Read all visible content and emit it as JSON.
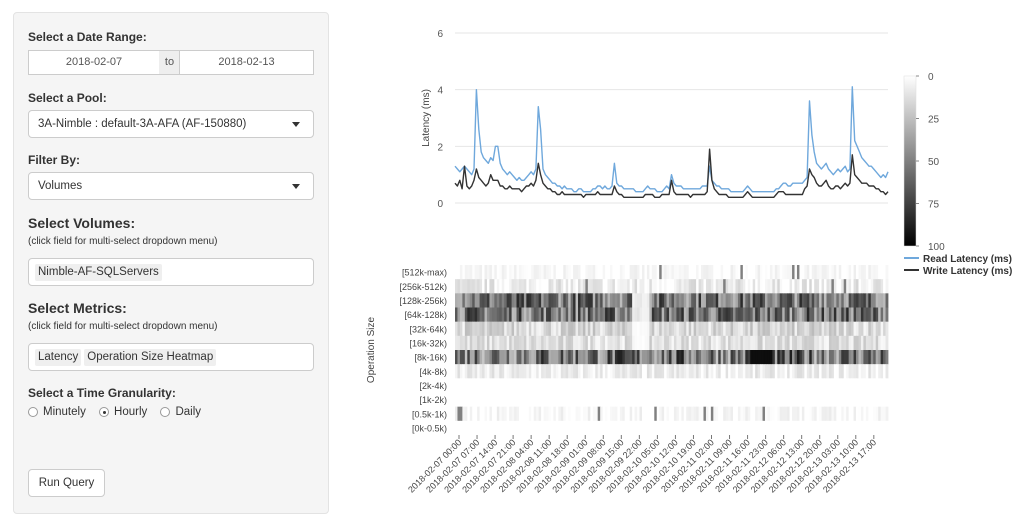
{
  "sidebar": {
    "date_range_label": "Select a Date Range:",
    "date_start": "2018-02-07",
    "date_sep": "to",
    "date_end": "2018-02-13",
    "pool_label": "Select a Pool:",
    "pool_value": "3A-Nimble : default-3A-AFA (AF-150880)",
    "filter_label": "Filter By:",
    "filter_value": "Volumes",
    "volumes_label": "Select Volumes:",
    "volumes_hint": "(click field for multi-select dropdown menu)",
    "volumes_tags": [
      "Nimble-AF-SQLServers"
    ],
    "metrics_label": "Select Metrics:",
    "metrics_hint": "(click field for multi-select dropdown menu)",
    "metrics_tags": [
      "Latency",
      "Operation Size Heatmap"
    ],
    "granularity_label": "Select a Time Granularity:",
    "granularity_options": [
      "Minutely",
      "Hourly",
      "Daily"
    ],
    "granularity_selected": "Hourly",
    "run_button": "Run Query"
  },
  "chart_data": [
    {
      "type": "line",
      "ylabel": "Latency (ms)",
      "ylim": [
        0,
        6
      ],
      "yticks": [
        "0",
        "2",
        "4",
        "6"
      ],
      "series": [
        {
          "name": "Read Latency (ms)",
          "color": "#6fa8dc",
          "values": [
            1.3,
            1.2,
            1.1,
            1.2,
            1.3,
            1.2,
            1.1,
            1.0,
            1.2,
            4.0,
            2.6,
            1.8,
            1.6,
            1.5,
            1.4,
            1.6,
            1.5,
            2.0,
            2.0,
            1.4,
            1.2,
            1.1,
            1.0,
            1.1,
            1.0,
            0.9,
            0.8,
            0.9,
            0.8,
            0.8,
            0.9,
            1.0,
            1.1,
            1.0,
            1.2,
            3.4,
            2.6,
            1.2,
            1.0,
            0.9,
            0.8,
            0.7,
            0.7,
            0.6,
            0.6,
            0.5,
            0.6,
            0.5,
            0.5,
            0.5,
            0.4,
            0.4,
            0.5,
            0.5,
            0.4,
            0.4,
            0.4,
            0.4,
            0.5,
            0.5,
            0.6,
            0.6,
            0.5,
            0.6,
            0.5,
            0.5,
            0.6,
            1.4,
            0.7,
            0.6,
            0.6,
            0.5,
            0.5,
            0.5,
            0.5,
            0.5,
            0.4,
            0.4,
            0.4,
            0.4,
            0.5,
            0.6,
            0.5,
            0.5,
            0.5,
            0.4,
            0.4,
            0.4,
            0.5,
            0.6,
            0.5,
            1.0,
            0.7,
            0.6,
            0.6,
            0.6,
            0.5,
            0.5,
            0.5,
            0.5,
            0.5,
            0.5,
            0.5,
            0.5,
            0.6,
            0.6,
            0.6,
            1.3,
            0.8,
            0.7,
            0.6,
            0.6,
            0.5,
            0.5,
            0.5,
            0.5,
            0.4,
            0.4,
            0.4,
            0.4,
            0.4,
            0.4,
            0.5,
            0.6,
            0.5,
            0.4,
            0.4,
            0.4,
            0.4,
            0.4,
            0.4,
            0.4,
            0.4,
            0.4,
            0.4,
            0.5,
            0.5,
            0.6,
            0.7,
            0.7,
            0.6,
            0.6,
            0.7,
            0.7,
            0.7,
            0.7,
            0.7,
            0.8,
            0.9,
            3.6,
            2.4,
            1.8,
            1.4,
            1.3,
            1.2,
            1.3,
            1.4,
            1.2,
            1.1,
            1.0,
            1.1,
            1.2,
            1.1,
            1.2,
            1.3,
            1.1,
            1.2,
            4.1,
            2.2,
            2.0,
            1.8,
            1.6,
            1.5,
            1.4,
            1.3,
            1.3,
            1.2,
            1.1,
            1.0,
            0.9,
            1.0,
            0.9,
            1.1
          ]
        },
        {
          "name": "Write Latency (ms)",
          "color": "#333333",
          "values": [
            0.7,
            0.6,
            0.8,
            0.5,
            1.3,
            0.6,
            0.5,
            0.6,
            0.8,
            1.2,
            0.9,
            0.8,
            0.7,
            0.6,
            0.7,
            1.0,
            0.8,
            0.8,
            0.8,
            0.6,
            0.6,
            0.5,
            0.5,
            0.6,
            0.5,
            0.5,
            0.5,
            0.5,
            0.4,
            0.5,
            0.6,
            0.6,
            0.7,
            0.6,
            0.8,
            1.4,
            1.0,
            0.7,
            0.6,
            0.5,
            0.5,
            0.4,
            0.4,
            0.3,
            0.3,
            0.4,
            0.3,
            0.3,
            0.3,
            0.3,
            0.3,
            0.3,
            0.3,
            0.3,
            0.2,
            0.3,
            0.3,
            0.3,
            0.3,
            0.3,
            0.4,
            0.3,
            0.3,
            0.3,
            0.3,
            0.3,
            0.3,
            0.6,
            0.4,
            0.3,
            0.3,
            0.2,
            0.2,
            0.2,
            0.2,
            0.2,
            0.2,
            0.2,
            0.2,
            0.2,
            0.3,
            0.3,
            0.3,
            0.3,
            0.2,
            0.2,
            0.2,
            0.3,
            0.3,
            0.3,
            0.3,
            0.8,
            0.4,
            0.3,
            0.3,
            0.3,
            0.3,
            0.3,
            0.3,
            0.2,
            0.3,
            0.3,
            0.3,
            0.3,
            0.3,
            0.3,
            0.4,
            1.9,
            0.8,
            0.5,
            0.4,
            0.3,
            0.3,
            0.3,
            0.3,
            0.2,
            0.2,
            0.2,
            0.2,
            0.2,
            0.2,
            0.2,
            0.3,
            0.4,
            0.3,
            0.2,
            0.2,
            0.2,
            0.2,
            0.2,
            0.2,
            0.2,
            0.2,
            0.2,
            0.2,
            0.3,
            0.4,
            0.4,
            0.4,
            0.3,
            0.3,
            0.3,
            0.3,
            0.3,
            0.3,
            0.3,
            0.3,
            0.5,
            0.6,
            1.2,
            1.0,
            0.9,
            0.7,
            0.6,
            0.6,
            0.7,
            0.8,
            0.6,
            0.5,
            0.5,
            0.6,
            0.6,
            0.5,
            0.6,
            0.7,
            0.6,
            0.7,
            1.7,
            1.0,
            0.9,
            0.8,
            0.7,
            0.7,
            0.7,
            0.6,
            0.6,
            0.6,
            0.5,
            0.5,
            0.4,
            0.4,
            0.3,
            0.4
          ]
        }
      ]
    },
    {
      "type": "heatmap",
      "ylabel": "Operation Size",
      "rows": [
        "[512k-max)",
        "[256k-512k)",
        "[128k-256k)",
        "[64k-128k)",
        "[32k-64k)",
        "[16k-32k)",
        "[8k-16k)",
        "[4k-8k)",
        "[2k-4k)",
        "[1k-2k)",
        "[0.5k-1k)",
        "[0k-0.5k)"
      ],
      "x_ticks": [
        "2018-02-07 00:00",
        "2018-02-07 07:00",
        "2018-02-07 14:00",
        "2018-02-07 21:00",
        "2018-02-08 04:00",
        "2018-02-08 11:00",
        "2018-02-08 18:00",
        "2018-02-09 01:00",
        "2018-02-09 08:00",
        "2018-02-09 15:00",
        "2018-02-09 22:00",
        "2018-02-10 05:00",
        "2018-02-10 12:00",
        "2018-02-10 19:00",
        "2018-02-11 02:00",
        "2018-02-11 09:00",
        "2018-02-11 16:00",
        "2018-02-11 23:00",
        "2018-02-12 06:00",
        "2018-02-12 13:00",
        "2018-02-12 20:00",
        "2018-02-13 03:00",
        "2018-02-13 10:00",
        "2018-02-13 17:00"
      ],
      "color_scale": {
        "min": 0,
        "max": 100,
        "ticks": [
          "0",
          "25",
          "50",
          "75",
          "100"
        ]
      }
    }
  ]
}
